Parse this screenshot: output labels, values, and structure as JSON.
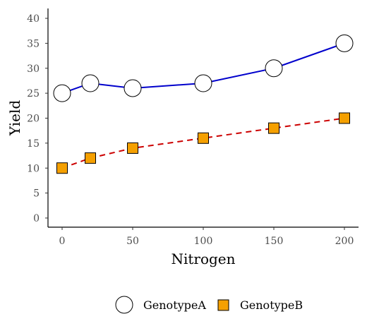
{
  "chart_data": {
    "type": "line",
    "xlabel": "Nitrogen",
    "ylabel": "Yield",
    "xlim": [
      0,
      200
    ],
    "ylim": [
      0,
      40
    ],
    "xticks": [
      0,
      50,
      100,
      150,
      200
    ],
    "yticks": [
      0,
      5,
      10,
      15,
      20,
      25,
      30,
      35,
      40
    ],
    "grid": false,
    "legend_position": "bottom",
    "x": [
      0,
      20,
      50,
      100,
      150,
      200
    ],
    "series": [
      {
        "name": "GenotypeA",
        "values": [
          25,
          27,
          26,
          27,
          30,
          35
        ],
        "line_color": "#0000cc",
        "line_style": "solid",
        "marker": "circle",
        "marker_fill": "#ffffff"
      },
      {
        "name": "GenotypeB",
        "values": [
          10,
          12,
          14,
          16,
          18,
          20
        ],
        "line_color": "#cc0000",
        "line_style": "dashed",
        "marker": "square",
        "marker_fill": "#f5a000"
      }
    ]
  }
}
